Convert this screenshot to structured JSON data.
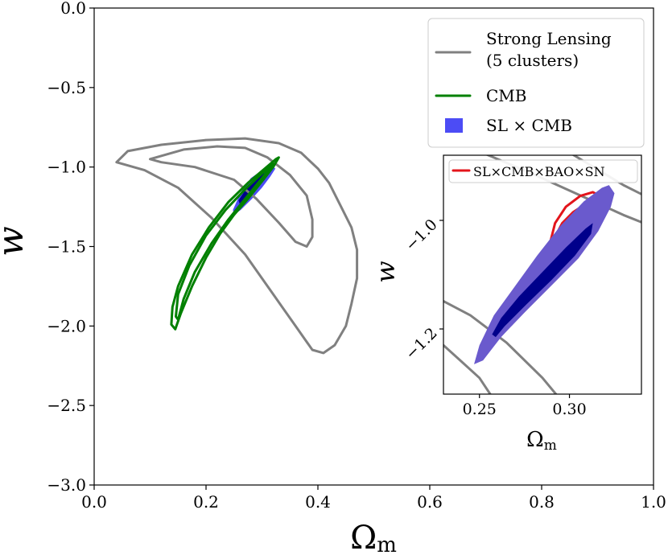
{
  "chart_data": [
    {
      "type": "contour",
      "panel": "main",
      "xlabel": "Ω",
      "xlabel_sub": "m",
      "ylabel": "w",
      "xlim": [
        0.0,
        1.0
      ],
      "ylim": [
        -3.0,
        0.0
      ],
      "xticks": [
        0.0,
        0.2,
        0.4,
        0.6,
        0.8,
        1.0
      ],
      "xtick_labels": [
        "0.0",
        "0.2",
        "0.4",
        "0.6",
        "0.8",
        "1.0"
      ],
      "yticks": [
        0.0,
        -0.5,
        -1.0,
        -1.5,
        -2.0,
        -2.5,
        -3.0
      ],
      "ytick_labels": [
        "0.0",
        "−0.5",
        "−1.0",
        "−1.5",
        "−2.0",
        "−2.5",
        "−3.0"
      ],
      "legend": {
        "position": "top-right",
        "entries": [
          {
            "label_lines": [
              "Strong Lensing",
              "(5 clusters)"
            ],
            "style": "line",
            "color": "#808080"
          },
          {
            "label_lines": [
              "CMB"
            ],
            "style": "line",
            "color": "#008000"
          },
          {
            "label_lines": [
              "SL × CMB"
            ],
            "style": "patch",
            "color": "#4c4cf5"
          }
        ]
      },
      "series": [
        {
          "name": "Strong Lensing (5 clusters) outer",
          "style": "line",
          "color": "#808080",
          "points": [
            [
              0.04,
              -0.97
            ],
            [
              0.06,
              -0.9
            ],
            [
              0.12,
              -0.86
            ],
            [
              0.2,
              -0.83
            ],
            [
              0.27,
              -0.82
            ],
            [
              0.33,
              -0.85
            ],
            [
              0.37,
              -0.91
            ],
            [
              0.4,
              -1.01
            ],
            [
              0.42,
              -1.1
            ],
            [
              0.44,
              -1.24
            ],
            [
              0.46,
              -1.38
            ],
            [
              0.47,
              -1.52
            ],
            [
              0.47,
              -1.7
            ],
            [
              0.46,
              -1.86
            ],
            [
              0.45,
              -2.0
            ],
            [
              0.43,
              -2.12
            ],
            [
              0.41,
              -2.17
            ],
            [
              0.39,
              -2.15
            ],
            [
              0.36,
              -2.0
            ],
            [
              0.32,
              -1.8
            ],
            [
              0.27,
              -1.55
            ],
            [
              0.21,
              -1.32
            ],
            [
              0.15,
              -1.13
            ],
            [
              0.09,
              -1.02
            ],
            [
              0.04,
              -0.97
            ]
          ]
        },
        {
          "name": "Strong Lensing (5 clusters) inner",
          "style": "line",
          "color": "#808080",
          "points": [
            [
              0.1,
              -0.95
            ],
            [
              0.16,
              -0.89
            ],
            [
              0.22,
              -0.87
            ],
            [
              0.27,
              -0.88
            ],
            [
              0.31,
              -0.94
            ],
            [
              0.35,
              -1.05
            ],
            [
              0.38,
              -1.18
            ],
            [
              0.39,
              -1.33
            ],
            [
              0.39,
              -1.44
            ],
            [
              0.38,
              -1.5
            ],
            [
              0.36,
              -1.47
            ],
            [
              0.33,
              -1.35
            ],
            [
              0.29,
              -1.2
            ],
            [
              0.25,
              -1.08
            ],
            [
              0.18,
              -1.0
            ],
            [
              0.12,
              -0.97
            ],
            [
              0.1,
              -0.95
            ]
          ]
        },
        {
          "name": "CMB outer",
          "style": "line",
          "color": "#008000",
          "points": [
            [
              0.33,
              -0.94
            ],
            [
              0.32,
              -1.0
            ],
            [
              0.3,
              -1.09
            ],
            [
              0.275,
              -1.2
            ],
            [
              0.25,
              -1.3
            ],
            [
              0.225,
              -1.42
            ],
            [
              0.2,
              -1.57
            ],
            [
              0.175,
              -1.75
            ],
            [
              0.155,
              -1.92
            ],
            [
              0.145,
              -2.02
            ],
            [
              0.138,
              -1.99
            ],
            [
              0.14,
              -1.88
            ],
            [
              0.15,
              -1.75
            ],
            [
              0.175,
              -1.55
            ],
            [
              0.205,
              -1.38
            ],
            [
              0.24,
              -1.22
            ],
            [
              0.275,
              -1.1
            ],
            [
              0.305,
              -1.01
            ],
            [
              0.325,
              -0.95
            ],
            [
              0.33,
              -0.94
            ]
          ]
        },
        {
          "name": "CMB inner",
          "style": "line",
          "color": "#008000",
          "points": [
            [
              0.32,
              -0.98
            ],
            [
              0.3,
              -1.07
            ],
            [
              0.27,
              -1.2
            ],
            [
              0.24,
              -1.33
            ],
            [
              0.21,
              -1.48
            ],
            [
              0.18,
              -1.66
            ],
            [
              0.16,
              -1.83
            ],
            [
              0.15,
              -1.96
            ],
            [
              0.146,
              -1.94
            ],
            [
              0.15,
              -1.8
            ],
            [
              0.17,
              -1.62
            ],
            [
              0.2,
              -1.43
            ],
            [
              0.235,
              -1.27
            ],
            [
              0.27,
              -1.14
            ],
            [
              0.3,
              -1.04
            ],
            [
              0.32,
              -0.98
            ]
          ]
        },
        {
          "name": "SL × CMB 95%",
          "style": "filled",
          "color": "#4c4cf5",
          "points": [
            [
              0.248,
              -1.27
            ],
            [
              0.262,
              -1.16
            ],
            [
              0.28,
              -1.07
            ],
            [
              0.3,
              -1.02
            ],
            [
              0.318,
              -0.99
            ],
            [
              0.324,
              -1.01
            ],
            [
              0.315,
              -1.06
            ],
            [
              0.3,
              -1.13
            ],
            [
              0.282,
              -1.2
            ],
            [
              0.262,
              -1.27
            ],
            [
              0.25,
              -1.3
            ],
            [
              0.248,
              -1.27
            ]
          ]
        },
        {
          "name": "SL × CMB 68%",
          "style": "filled",
          "color": "#00008b",
          "points": [
            [
              0.258,
              -1.21
            ],
            [
              0.275,
              -1.12
            ],
            [
              0.295,
              -1.05
            ],
            [
              0.31,
              -1.03
            ],
            [
              0.305,
              -1.08
            ],
            [
              0.29,
              -1.14
            ],
            [
              0.27,
              -1.2
            ],
            [
              0.26,
              -1.23
            ],
            [
              0.258,
              -1.21
            ]
          ]
        }
      ]
    },
    {
      "type": "contour",
      "panel": "inset",
      "xlabel": "Ω",
      "xlabel_sub": "m",
      "ylabel": "w",
      "xlim": [
        0.23,
        0.34
      ],
      "ylim": [
        -1.32,
        -0.88
      ],
      "xticks": [
        0.25,
        0.3
      ],
      "xtick_labels": [
        "0.25",
        "0.30"
      ],
      "yticks": [
        -1.0,
        -1.2
      ],
      "ytick_labels": [
        "−1.0",
        "−1.2"
      ],
      "legend": {
        "position": "top-right",
        "entries": [
          {
            "label_lines": [
              "SL×CMB×BAO×SN"
            ],
            "style": "line",
            "color": "#e3141b"
          }
        ]
      },
      "series": [
        {
          "name": "Strong Lensing arc 1",
          "style": "line",
          "color": "#808080",
          "points": [
            [
              0.3,
              -0.875
            ],
            [
              0.315,
              -0.905
            ],
            [
              0.33,
              -0.935
            ],
            [
              0.345,
              -0.96
            ]
          ]
        },
        {
          "name": "Strong Lensing arc 2",
          "style": "line",
          "color": "#808080",
          "points": [
            [
              0.23,
              -0.845
            ],
            [
              0.28,
              -0.915
            ],
            [
              0.31,
              -0.96
            ],
            [
              0.33,
              -0.99
            ],
            [
              0.345,
              -1.01
            ]
          ]
        },
        {
          "name": "Strong Lensing arc 3",
          "style": "line",
          "color": "#808080",
          "points": [
            [
              0.225,
              -1.14
            ],
            [
              0.245,
              -1.175
            ],
            [
              0.265,
              -1.225
            ],
            [
              0.285,
              -1.29
            ],
            [
              0.295,
              -1.33
            ]
          ]
        },
        {
          "name": "Strong Lensing arc 4",
          "style": "line",
          "color": "#808080",
          "points": [
            [
              0.225,
              -1.215
            ],
            [
              0.24,
              -1.26
            ],
            [
              0.25,
              -1.29
            ],
            [
              0.258,
              -1.33
            ]
          ]
        },
        {
          "name": "SL × CMB 95%",
          "style": "filled",
          "color": "#6a5acd",
          "points": [
            [
              0.247,
              -1.265
            ],
            [
              0.25,
              -1.23
            ],
            [
              0.258,
              -1.175
            ],
            [
              0.27,
              -1.12
            ],
            [
              0.282,
              -1.065
            ],
            [
              0.295,
              -1.01
            ],
            [
              0.308,
              -0.965
            ],
            [
              0.318,
              -0.94
            ],
            [
              0.322,
              -0.935
            ],
            [
              0.325,
              -0.95
            ],
            [
              0.323,
              -0.975
            ],
            [
              0.316,
              -1.02
            ],
            [
              0.305,
              -1.07
            ],
            [
              0.29,
              -1.12
            ],
            [
              0.275,
              -1.17
            ],
            [
              0.262,
              -1.215
            ],
            [
              0.252,
              -1.258
            ],
            [
              0.247,
              -1.265
            ]
          ]
        },
        {
          "name": "SL × CMB 68%",
          "style": "filled",
          "color": "#00008b",
          "points": [
            [
              0.257,
              -1.21
            ],
            [
              0.262,
              -1.18
            ],
            [
              0.272,
              -1.14
            ],
            [
              0.285,
              -1.095
            ],
            [
              0.298,
              -1.05
            ],
            [
              0.309,
              -1.015
            ],
            [
              0.313,
              -1.005
            ],
            [
              0.312,
              -1.025
            ],
            [
              0.303,
              -1.065
            ],
            [
              0.29,
              -1.11
            ],
            [
              0.276,
              -1.155
            ],
            [
              0.264,
              -1.195
            ],
            [
              0.259,
              -1.215
            ],
            [
              0.257,
              -1.21
            ]
          ]
        },
        {
          "name": "SL×CMB×BAO×SN outer",
          "style": "line",
          "color": "#e3141b",
          "points": [
            [
              0.29,
              -1.08
            ],
            [
              0.289,
              -1.045
            ],
            [
              0.292,
              -1.005
            ],
            [
              0.298,
              -0.975
            ],
            [
              0.306,
              -0.955
            ],
            [
              0.313,
              -0.948
            ],
            [
              0.317,
              -0.955
            ],
            [
              0.316,
              -0.98
            ],
            [
              0.31,
              -1.015
            ],
            [
              0.302,
              -1.05
            ],
            [
              0.295,
              -1.075
            ],
            [
              0.29,
              -1.08
            ]
          ]
        },
        {
          "name": "SL×CMB×BAO×SN inner",
          "style": "line",
          "color": "#e3141b",
          "points": [
            [
              0.292,
              -1.055
            ],
            [
              0.292,
              -1.03
            ],
            [
              0.296,
              -1.005
            ],
            [
              0.302,
              -0.985
            ],
            [
              0.308,
              -0.972
            ],
            [
              0.312,
              -0.975
            ],
            [
              0.311,
              -0.995
            ],
            [
              0.305,
              -1.022
            ],
            [
              0.298,
              -1.045
            ],
            [
              0.292,
              -1.055
            ]
          ]
        }
      ]
    }
  ]
}
